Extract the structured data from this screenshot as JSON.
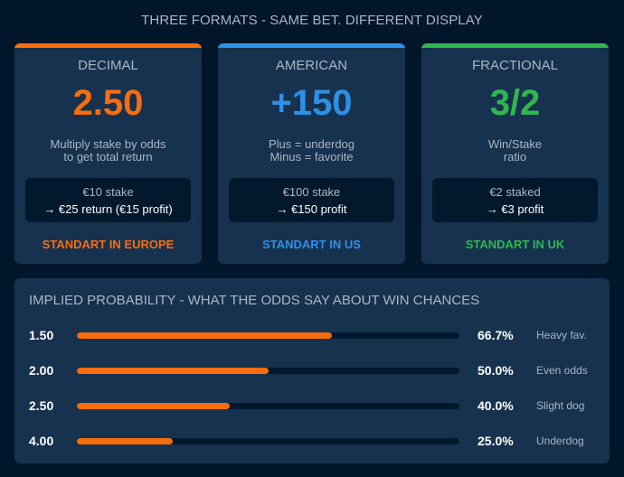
{
  "page": {
    "title": "THREE FORMATS - SAME BET. DIFFERENT DISPLAY"
  },
  "colors": {
    "background": "#01162b",
    "card": "#17324f",
    "decimal": "#f96d0f",
    "american": "#2e8fe6",
    "fractional": "#2fb74d",
    "bar": "#f96d0f"
  },
  "cards": [
    {
      "format": "DECIMAL",
      "odds": "2.50",
      "desc_line1": "Multiply stake by odds",
      "desc_line2": "to get total return",
      "example_line1": "€10 stake",
      "example_line2": "→ €25 return (€15 profit)",
      "standard": "STANDART IN EUROPE"
    },
    {
      "format": "AMERICAN",
      "odds": "+150",
      "desc_line1": "Plus = underdog",
      "desc_line2": "Minus = favorite",
      "example_line1": "€100 stake",
      "example_line2": "→ €150 profit",
      "standard": "STANDART IN US"
    },
    {
      "format": "FRACTIONAL",
      "odds": "3/2",
      "desc_line1": "Win/Stake",
      "desc_line2": "ratio",
      "example_line1": "€2 staked",
      "example_line2": "→ €3 profit",
      "standard": "STANDART IN UK"
    }
  ],
  "probability": {
    "title": "IMPLIED PROBABILITY - WHAT THE ODDS SAY ABOUT WIN CHANCES",
    "rows": [
      {
        "odds": "1.50",
        "percent": "66.7%",
        "value": 66.7,
        "label": "Heavy fav."
      },
      {
        "odds": "2.00",
        "percent": "50.0%",
        "value": 50.0,
        "label": "Even odds"
      },
      {
        "odds": "2.50",
        "percent": "40.0%",
        "value": 40.0,
        "label": "Slight dog"
      },
      {
        "odds": "4.00",
        "percent": "25.0%",
        "value": 25.0,
        "label": "Underdog"
      }
    ]
  }
}
